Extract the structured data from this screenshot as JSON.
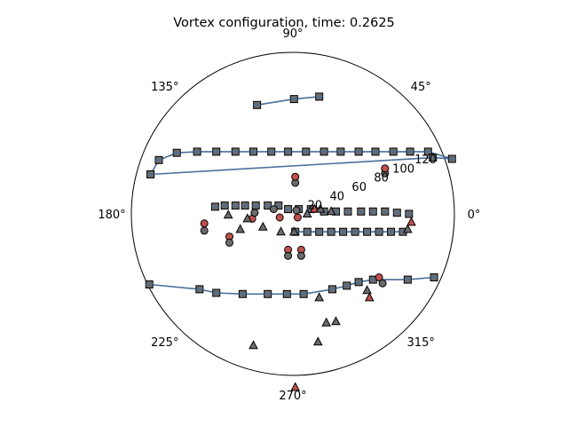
{
  "chart_data": {
    "type": "scatter",
    "projection": "polar",
    "title": "Vortex configuration, time: 0.2625",
    "theta_tick_labels": [
      "0°",
      "45°",
      "90°",
      "135°",
      "180°",
      "225°",
      "270°",
      "315°"
    ],
    "theta_ticks_deg": [
      0,
      45,
      90,
      135,
      180,
      225,
      270,
      315
    ],
    "r_tick_labels": [
      "20",
      "40",
      "60",
      "80",
      "100",
      "120"
    ],
    "r_ticks": [
      20,
      40,
      60,
      80,
      100,
      120
    ],
    "r_label_angle_deg": 22.5,
    "rlim": [
      0,
      135
    ],
    "grid": false,
    "legend": "none",
    "colors": {
      "line": "#4a6f9a",
      "marker_red": "#c0504d",
      "marker_gray": "#6b6b6b",
      "marker_edge": "#000000"
    },
    "series": [
      {
        "marker": "square",
        "connected": true,
        "points": [
          [
            -119,
            33
          ],
          [
            -112,
            45
          ],
          [
            -97,
            51
          ],
          [
            -80,
            52
          ],
          [
            -64,
            52
          ],
          [
            -48,
            52
          ],
          [
            -33,
            52
          ],
          [
            -18,
            52
          ],
          [
            -4,
            52
          ],
          [
            11,
            52
          ],
          [
            26,
            52
          ],
          [
            40,
            52
          ],
          [
            55,
            52
          ],
          [
            69,
            52
          ],
          [
            84,
            52
          ],
          [
            98,
            52
          ],
          [
            113,
            52
          ],
          [
            133,
            46
          ],
          [
            117,
            47
          ],
          [
            -119,
            33
          ]
        ]
      },
      {
        "marker": "square",
        "connected": true,
        "points": [
          [
            -30,
            91
          ],
          [
            1,
            96
          ],
          [
            22,
            98
          ]
        ]
      },
      {
        "marker": "square",
        "connected": true,
        "points": [
          [
            -120,
            -59
          ],
          [
            -78,
            -63
          ],
          [
            -64,
            -66
          ],
          [
            -42,
            -67
          ],
          [
            -21,
            -67
          ],
          [
            -5,
            -67
          ],
          [
            9,
            -67
          ],
          [
            33,
            -63
          ],
          [
            45,
            -60
          ],
          [
            55,
            -57
          ],
          [
            67,
            -55
          ],
          [
            96,
            -55
          ],
          [
            118,
            -53
          ]
        ]
      },
      {
        "marker": "square",
        "connected": true,
        "points": [
          [
            2,
            -15
          ],
          [
            12,
            -15
          ],
          [
            22,
            -15
          ],
          [
            32,
            -15
          ],
          [
            42,
            -15
          ],
          [
            52,
            -15
          ],
          [
            62,
            -15
          ],
          [
            72,
            -15
          ],
          [
            82,
            -15
          ],
          [
            92,
            -15
          ]
        ]
      },
      {
        "marker": "square",
        "connected": false,
        "points": [
          [
            -65,
            6
          ],
          [
            -57,
            7
          ],
          [
            -48,
            7
          ],
          [
            -40,
            7
          ],
          [
            -31,
            7
          ],
          [
            -21,
            7
          ],
          [
            -12,
            7
          ],
          [
            -4,
            4
          ],
          [
            5,
            4
          ],
          [
            15,
            4
          ],
          [
            26,
            2
          ],
          [
            36,
            2
          ],
          [
            46,
            2
          ],
          [
            57,
            2
          ],
          [
            67,
            2
          ],
          [
            77,
            2
          ],
          [
            87,
            1
          ],
          [
            97,
            0
          ]
        ]
      },
      {
        "marker": "circle",
        "connected": false,
        "points": [
          {
            "x": -74,
            "y": -8,
            "c": "red"
          },
          {
            "x": -74,
            "y": -14,
            "c": "gray"
          },
          {
            "x": -53,
            "y": -19,
            "c": "red"
          },
          {
            "x": -53,
            "y": -24,
            "c": "gray"
          },
          {
            "x": -34,
            "y": -4,
            "c": "red"
          },
          {
            "x": -32,
            "y": 1,
            "c": "gray"
          },
          {
            "x": -16,
            "y": 4,
            "c": "gray"
          },
          {
            "x": -11,
            "y": -3,
            "c": "red"
          },
          {
            "x": 3,
            "y": 3,
            "c": "gray"
          },
          {
            "x": 4,
            "y": -3,
            "c": "red"
          },
          {
            "x": 2,
            "y": 26,
            "c": "gray"
          },
          {
            "x": 2,
            "y": 31,
            "c": "red"
          },
          {
            "x": -4,
            "y": -30,
            "c": "red"
          },
          {
            "x": -4,
            "y": -35,
            "c": "gray"
          },
          {
            "x": 7,
            "y": -30,
            "c": "red"
          },
          {
            "x": 7,
            "y": -35,
            "c": "gray"
          },
          {
            "x": 72,
            "y": -53,
            "c": "red"
          },
          {
            "x": 75,
            "y": -58,
            "c": "gray"
          },
          {
            "x": 77,
            "y": 34,
            "c": "gray"
          },
          {
            "x": 77,
            "y": 38,
            "c": "red"
          }
        ]
      },
      {
        "marker": "triangle",
        "connected": false,
        "points": [
          {
            "x": -25,
            "y": -11,
            "c": "gray"
          },
          {
            "x": -10,
            "y": -15,
            "c": "gray"
          },
          {
            "x": 1,
            "y": -15,
            "c": "gray"
          },
          {
            "x": 12,
            "y": 0,
            "c": "gray"
          },
          {
            "x": 18,
            "y": 4,
            "c": "red"
          },
          {
            "x": 23,
            "y": 4,
            "c": "gray"
          },
          {
            "x": 32,
            "y": 2,
            "c": "gray"
          },
          {
            "x": 96,
            "y": -13,
            "c": "gray"
          },
          {
            "x": 99,
            "y": -7,
            "c": "red"
          },
          {
            "x": -38,
            "y": -4,
            "c": "gray"
          },
          {
            "x": -44,
            "y": -13,
            "c": "gray"
          },
          {
            "x": -54,
            "y": -1,
            "c": "gray"
          },
          {
            "x": 22,
            "y": -70,
            "c": "gray"
          },
          {
            "x": 36,
            "y": -90,
            "c": "gray"
          },
          {
            "x": 28,
            "y": -91,
            "c": "gray"
          },
          {
            "x": 62,
            "y": -64,
            "c": "gray"
          },
          {
            "x": 64,
            "y": -70,
            "c": "red"
          },
          {
            "x": -33,
            "y": -110,
            "c": "gray"
          },
          {
            "x": 21,
            "y": -107,
            "c": "gray"
          },
          {
            "x": 2,
            "y": -145,
            "c": "red"
          }
        ]
      }
    ]
  }
}
